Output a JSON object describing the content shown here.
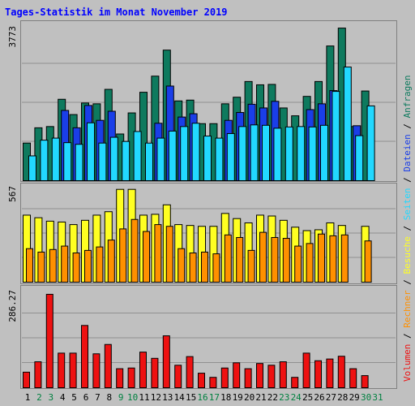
{
  "title": "Tages-Statistik im Monat November 2019",
  "colors": {
    "anfragen": "#0e7a5e",
    "dateien": "#1a3ee8",
    "seiten": "#22d8ff",
    "besuche": "#ffff22",
    "rechner": "#ff9000",
    "volumen": "#ee1111",
    "weekend_day": "#008040",
    "weekday": "#000000"
  },
  "legend": {
    "volumen": "Volumen",
    "rechner": "Rechner",
    "besuche": "Besuche",
    "seiten": "Seiten",
    "dateien": "Dateien",
    "anfragen": "Anfragen",
    "separator": " / "
  },
  "chart_data": {
    "type": "bar",
    "categories": [
      "1",
      "2",
      "3",
      "4",
      "5",
      "6",
      "7",
      "8",
      "9",
      "10",
      "11",
      "12",
      "13",
      "14",
      "15",
      "16",
      "17",
      "18",
      "19",
      "20",
      "21",
      "22",
      "23",
      "24",
      "25",
      "26",
      "27",
      "28",
      "29",
      "30",
      "31"
    ],
    "weekend_categories": [
      "2",
      "3",
      "9",
      "10",
      "16",
      "17",
      "23",
      "24",
      "30",
      "31"
    ],
    "panels": [
      {
        "name": "top",
        "ymax": 3773,
        "ymax_label": "3773",
        "series": [
          {
            "name": "Anfragen",
            "values": [
              910,
              1280,
              1310,
              1970,
              1600,
              1880,
              1860,
              2210,
              1130,
              1640,
              2140,
              2530,
              3160,
              1930,
              1950,
              1380,
              1380,
              1860,
              2020,
              2400,
              2320,
              2330,
              1760,
              1570,
              2040,
              2400,
              3260,
              3693,
              1310,
              2170,
              0
            ]
          },
          {
            "name": "Dateien",
            "values": [
              0,
              0,
              0,
              1700,
              1280,
              1820,
              1460,
              1680,
              0,
              0,
              0,
              1390,
              2290,
              1540,
              1620,
              0,
              0,
              1460,
              1650,
              1850,
              1760,
              1920,
              0,
              0,
              1720,
              1860,
              2180,
              0,
              1330,
              0,
              0
            ]
          },
          {
            "name": "Seiten",
            "values": [
              600,
              980,
              1030,
              920,
              880,
              1400,
              910,
              1050,
              950,
              1190,
              910,
              1030,
              1200,
              1310,
              1390,
              1080,
              1030,
              1140,
              1310,
              1350,
              1340,
              1270,
              1300,
              1310,
              1300,
              1340,
              2160,
              2750,
              1090,
              1810,
              0
            ]
          }
        ]
      },
      {
        "name": "middle",
        "ymax": 567,
        "ymax_label": "567",
        "series": [
          {
            "name": "Besuche",
            "values": [
              390,
              375,
              355,
              350,
              335,
              360,
              390,
              410,
              540,
              540,
              390,
              395,
              450,
              335,
              330,
              325,
              325,
              400,
              370,
              345,
              390,
              385,
              360,
              320,
              300,
              305,
              345,
              330,
              0,
              325,
              0
            ]
          },
          {
            "name": "Rechner",
            "values": [
              195,
              175,
              190,
              210,
              170,
              185,
              205,
              245,
              310,
              365,
              295,
              335,
              325,
              195,
              170,
              175,
              165,
              275,
              260,
              185,
              290,
              260,
              255,
              210,
              225,
              280,
              270,
              275,
              0,
              240,
              0
            ]
          }
        ]
      },
      {
        "name": "bottom",
        "ymax": 286.27,
        "ymax_label": "286.27",
        "series": [
          {
            "name": "Volumen",
            "values": [
              45,
              75,
              270,
              100,
              100,
              180,
              98,
              125,
              55,
              57,
              103,
              85,
              150,
              65,
              90,
              42,
              30,
              57,
              72,
              55,
              70,
              65,
              75,
              30,
              100,
              78,
              83,
              91,
              55,
              35,
              0
            ]
          }
        ]
      }
    ]
  }
}
